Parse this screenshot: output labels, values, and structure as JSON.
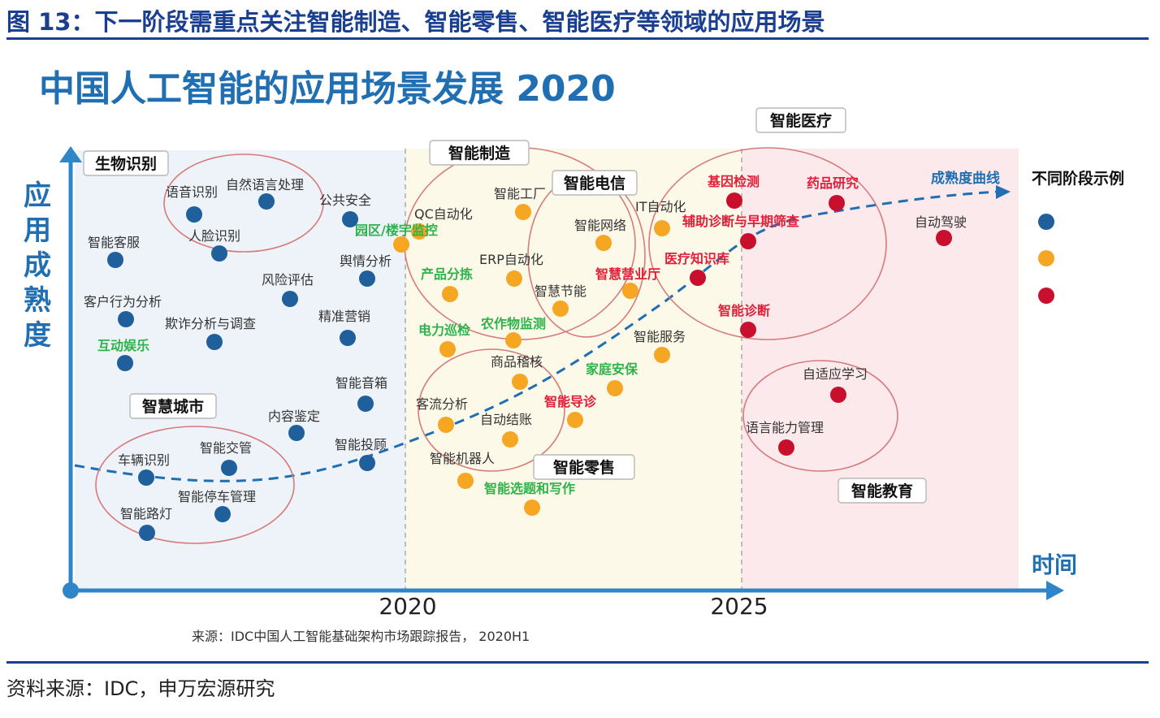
{
  "figure_title": "图 13：下一阶段需重点关注智能制造、智能零售、智能医疗等领域的应用场景",
  "footer_source": "资料来源：IDC，申万宏源研究",
  "colors": {
    "blue": "#1f5f9c",
    "orange": "#f5a623",
    "red": "#c8102e",
    "green": "#2db34a",
    "axis": "#2e86c8",
    "title_blue": "#1f6fb2",
    "zone_blue": "#eef3f9",
    "zone_yellow": "#fdf9e8",
    "zone_red": "#fbe9ec",
    "cluster_stroke": "#d77a7a",
    "curve": "#1f6fb2"
  },
  "chart_data": {
    "type": "scatter",
    "title": "中国人工智能的应用场景发展 2020",
    "ylabel": "应用成熟度",
    "xlabel": "时间",
    "x_ticks": [
      "2020",
      "2025"
    ],
    "curve_label": "成熟度曲线",
    "legend_title": "不同阶段示例",
    "legend_colors": [
      "blue",
      "orange",
      "red"
    ],
    "source": "来源：IDC中国人工智能基础架构市场跟踪报告， 2020H1",
    "clusters": [
      "生物识别",
      "智慧城市",
      "智能制造",
      "智能电信",
      "智能零售",
      "智能医疗",
      "智能教育"
    ],
    "points": [
      {
        "label": "语音识别",
        "stage": "blue"
      },
      {
        "label": "自然语言处理",
        "stage": "blue"
      },
      {
        "label": "人脸识别",
        "stage": "blue"
      },
      {
        "label": "智能客服",
        "stage": "blue"
      },
      {
        "label": "公共安全",
        "stage": "blue"
      },
      {
        "label": "舆情分析",
        "stage": "blue"
      },
      {
        "label": "风险评估",
        "stage": "blue"
      },
      {
        "label": "客户行为分析",
        "stage": "blue"
      },
      {
        "label": "精准营销",
        "stage": "blue"
      },
      {
        "label": "欺诈分析与调查",
        "stage": "blue"
      },
      {
        "label": "互动娱乐",
        "stage": "blue"
      },
      {
        "label": "智能音箱",
        "stage": "blue"
      },
      {
        "label": "内容鉴定",
        "stage": "blue"
      },
      {
        "label": "智能投顾",
        "stage": "blue"
      },
      {
        "label": "车辆识别",
        "stage": "blue"
      },
      {
        "label": "智能交管",
        "stage": "blue"
      },
      {
        "label": "智能停车管理",
        "stage": "blue"
      },
      {
        "label": "智能路灯",
        "stage": "blue"
      },
      {
        "label": "QC自动化",
        "stage": "orange"
      },
      {
        "label": "园区/楼宇监控",
        "stage": "orange"
      },
      {
        "label": "智能工厂",
        "stage": "orange"
      },
      {
        "label": "ERP自动化",
        "stage": "orange"
      },
      {
        "label": "产品分拣",
        "stage": "orange"
      },
      {
        "label": "智能网络",
        "stage": "orange"
      },
      {
        "label": "IT自动化",
        "stage": "orange"
      },
      {
        "label": "智慧节能",
        "stage": "orange"
      },
      {
        "label": "智慧营业厅",
        "stage": "orange"
      },
      {
        "label": "电力巡检",
        "stage": "orange"
      },
      {
        "label": "农作物监测",
        "stage": "orange"
      },
      {
        "label": "智能服务",
        "stage": "orange"
      },
      {
        "label": "商品稽核",
        "stage": "orange"
      },
      {
        "label": "家庭安保",
        "stage": "orange"
      },
      {
        "label": "智能导诊",
        "stage": "orange"
      },
      {
        "label": "客流分析",
        "stage": "orange"
      },
      {
        "label": "自动结账",
        "stage": "orange"
      },
      {
        "label": "智能机器人",
        "stage": "orange"
      },
      {
        "label": "智能选题和写作",
        "stage": "orange"
      },
      {
        "label": "基因检测",
        "stage": "red"
      },
      {
        "label": "药品研究",
        "stage": "red"
      },
      {
        "label": "辅助诊断与早期筛查",
        "stage": "red"
      },
      {
        "label": "医疗知识库",
        "stage": "red"
      },
      {
        "label": "智能诊断",
        "stage": "red"
      },
      {
        "label": "自动驾驶",
        "stage": "red"
      },
      {
        "label": "自适应学习",
        "stage": "red"
      },
      {
        "label": "语言能力管理",
        "stage": "red"
      }
    ]
  }
}
